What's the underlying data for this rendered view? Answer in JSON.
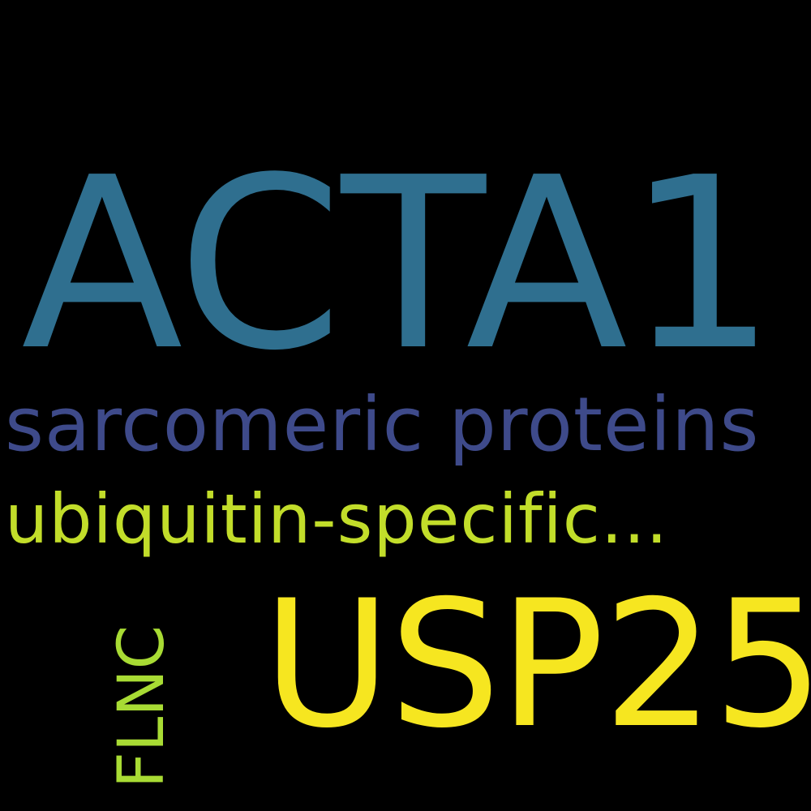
{
  "words": {
    "acta1": {
      "text": "ACTA1",
      "color": "#2f6f8f"
    },
    "sarcomeric": {
      "text": "sarcomeric proteins",
      "color": "#3e4a8a"
    },
    "ubiquitin": {
      "text": "ubiquitin-specific...",
      "color": "#c2dd2a"
    },
    "usp25": {
      "text": "USP25",
      "color": "#f6e620"
    },
    "flnc": {
      "text": "FLNC",
      "color": "#a8db34"
    }
  }
}
